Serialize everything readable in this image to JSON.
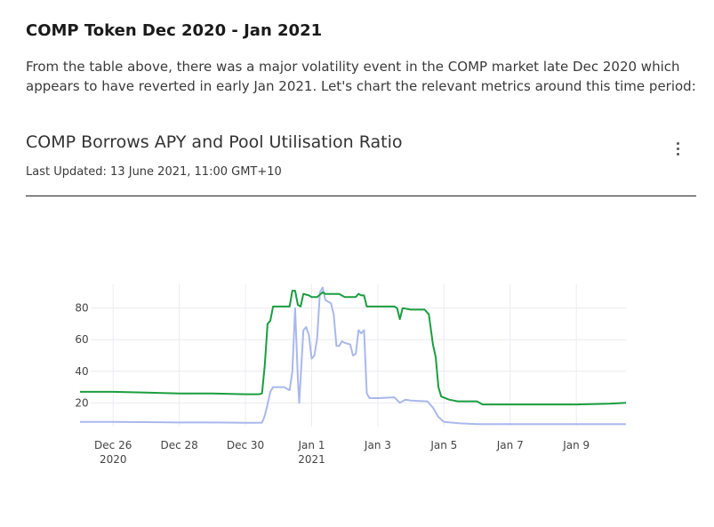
{
  "section": {
    "title": "COMP Token Dec 2020 - Jan 2021",
    "intro": "From the table above, there was a major volatility event in the COMP market late Dec 2020 which appears to have reverted in early Jan 2021. Let's chart the relevant metrics around this time period:"
  },
  "card": {
    "title": "COMP Borrows APY and Pool Utilisation Ratio",
    "updated": "Last Updated: 13 June 2021, 11:00 GMT+10",
    "menu_icon": "kebab-vertical-icon"
  },
  "chart_data": {
    "type": "line",
    "title": "COMP Borrows APY and Pool Utilisation Ratio",
    "xlabel": "",
    "ylabel": "",
    "xlim": [
      "2020-12-25",
      "2021-01-10"
    ],
    "ylim": [
      5,
      95
    ],
    "grid": true,
    "x_ticks": [
      {
        "date": "2020-12-26",
        "label": "Dec 26",
        "sublabel": "2020"
      },
      {
        "date": "2020-12-28",
        "label": "Dec 28",
        "sublabel": ""
      },
      {
        "date": "2020-12-30",
        "label": "Dec 30",
        "sublabel": ""
      },
      {
        "date": "2021-01-01",
        "label": "Jan 1",
        "sublabel": "2021"
      },
      {
        "date": "2021-01-03",
        "label": "Jan 3",
        "sublabel": ""
      },
      {
        "date": "2021-01-05",
        "label": "Jan 5",
        "sublabel": ""
      },
      {
        "date": "2021-01-07",
        "label": "Jan 7",
        "sublabel": ""
      },
      {
        "date": "2021-01-09",
        "label": "Jan 9",
        "sublabel": ""
      }
    ],
    "y_ticks": [
      20,
      40,
      60,
      80
    ],
    "series": [
      {
        "color": "#1a9e3f",
        "points": [
          [
            "2020-12-25 00:00",
            27
          ],
          [
            "2020-12-26 00:00",
            27
          ],
          [
            "2020-12-27 00:00",
            26.5
          ],
          [
            "2020-12-28 00:00",
            26
          ],
          [
            "2020-12-29 00:00",
            26
          ],
          [
            "2020-12-30 00:00",
            25.5
          ],
          [
            "2020-12-30 10:00",
            25.5
          ],
          [
            "2020-12-30 12:00",
            26
          ],
          [
            "2020-12-30 14:00",
            44
          ],
          [
            "2020-12-30 16:00",
            70
          ],
          [
            "2020-12-30 18:00",
            72
          ],
          [
            "2020-12-30 20:00",
            81
          ],
          [
            "2020-12-31 06:00",
            81
          ],
          [
            "2020-12-31 08:00",
            81
          ],
          [
            "2020-12-31 10:00",
            91
          ],
          [
            "2020-12-31 12:00",
            91
          ],
          [
            "2020-12-31 14:00",
            82
          ],
          [
            "2020-12-31 16:00",
            81
          ],
          [
            "2020-12-31 18:00",
            89
          ],
          [
            "2020-12-31 22:00",
            88
          ],
          [
            "2021-01-01 00:00",
            87
          ],
          [
            "2021-01-01 04:00",
            87
          ],
          [
            "2021-01-01 08:00",
            90
          ],
          [
            "2021-01-01 10:00",
            89
          ],
          [
            "2021-01-01 16:00",
            89
          ],
          [
            "2021-01-01 20:00",
            89
          ],
          [
            "2021-01-02 00:00",
            87
          ],
          [
            "2021-01-02 08:00",
            87
          ],
          [
            "2021-01-02 10:00",
            89
          ],
          [
            "2021-01-02 12:00",
            88
          ],
          [
            "2021-01-02 14:00",
            88
          ],
          [
            "2021-01-02 16:00",
            81
          ],
          [
            "2021-01-03 00:00",
            81
          ],
          [
            "2021-01-03 12:00",
            81
          ],
          [
            "2021-01-03 14:00",
            80
          ],
          [
            "2021-01-03 16:00",
            73
          ],
          [
            "2021-01-03 18:00",
            80
          ],
          [
            "2021-01-04 00:00",
            79
          ],
          [
            "2021-01-04 06:00",
            79
          ],
          [
            "2021-01-04 10:00",
            79
          ],
          [
            "2021-01-04 13:00",
            76
          ],
          [
            "2021-01-04 16:00",
            57
          ],
          [
            "2021-01-04 18:00",
            49
          ],
          [
            "2021-01-04 20:00",
            30
          ],
          [
            "2021-01-04 22:00",
            24
          ],
          [
            "2021-01-05 04:00",
            22
          ],
          [
            "2021-01-05 10:00",
            21
          ],
          [
            "2021-01-06 00:00",
            21
          ],
          [
            "2021-01-06 04:00",
            19
          ],
          [
            "2021-01-07 00:00",
            19
          ],
          [
            "2021-01-08 00:00",
            19
          ],
          [
            "2021-01-09 00:00",
            19
          ],
          [
            "2021-01-10 00:00",
            19.5
          ],
          [
            "2021-01-10 12:00",
            20
          ]
        ]
      },
      {
        "color": "#a9b8ec",
        "points": [
          [
            "2020-12-25 00:00",
            8
          ],
          [
            "2020-12-26 00:00",
            8
          ],
          [
            "2020-12-27 00:00",
            7.8
          ],
          [
            "2020-12-28 00:00",
            7.6
          ],
          [
            "2020-12-29 00:00",
            7.6
          ],
          [
            "2020-12-30 00:00",
            7.4
          ],
          [
            "2020-12-30 12:00",
            7.5
          ],
          [
            "2020-12-30 14:00",
            12
          ],
          [
            "2020-12-30 16:00",
            19
          ],
          [
            "2020-12-30 18:00",
            27
          ],
          [
            "2020-12-30 20:00",
            30
          ],
          [
            "2020-12-31 04:00",
            30
          ],
          [
            "2020-12-31 08:00",
            28
          ],
          [
            "2020-12-31 10:00",
            40
          ],
          [
            "2020-12-31 12:00",
            80
          ],
          [
            "2020-12-31 14:00",
            35
          ],
          [
            "2020-12-31 15:00",
            20
          ],
          [
            "2020-12-31 18:00",
            66
          ],
          [
            "2020-12-31 20:00",
            68
          ],
          [
            "2020-12-31 22:00",
            63
          ],
          [
            "2021-01-01 00:00",
            48
          ],
          [
            "2021-01-01 02:00",
            50
          ],
          [
            "2021-01-01 04:00",
            61
          ],
          [
            "2021-01-01 06:00",
            90
          ],
          [
            "2021-01-01 08:00",
            93
          ],
          [
            "2021-01-01 10:00",
            85
          ],
          [
            "2021-01-01 14:00",
            83
          ],
          [
            "2021-01-01 16:00",
            76
          ],
          [
            "2021-01-01 18:00",
            56
          ],
          [
            "2021-01-01 20:00",
            56
          ],
          [
            "2021-01-01 22:00",
            59
          ],
          [
            "2021-01-02 00:00",
            58
          ],
          [
            "2021-01-02 04:00",
            57
          ],
          [
            "2021-01-02 06:00",
            50
          ],
          [
            "2021-01-02 08:00",
            51
          ],
          [
            "2021-01-02 10:00",
            66
          ],
          [
            "2021-01-02 12:00",
            64
          ],
          [
            "2021-01-02 14:00",
            66
          ],
          [
            "2021-01-02 16:00",
            26
          ],
          [
            "2021-01-02 18:00",
            23
          ],
          [
            "2021-01-03 00:00",
            23
          ],
          [
            "2021-01-03 12:00",
            23.5
          ],
          [
            "2021-01-03 16:00",
            20
          ],
          [
            "2021-01-03 20:00",
            22
          ],
          [
            "2021-01-04 00:00",
            21.5
          ],
          [
            "2021-01-04 12:00",
            21
          ],
          [
            "2021-01-04 16:00",
            17
          ],
          [
            "2021-01-04 20:00",
            11
          ],
          [
            "2021-01-05 00:00",
            8
          ],
          [
            "2021-01-05 12:00",
            7
          ],
          [
            "2021-01-06 00:00",
            6.5
          ],
          [
            "2021-01-07 00:00",
            6.5
          ],
          [
            "2021-01-08 00:00",
            6.5
          ],
          [
            "2021-01-09 00:00",
            6.5
          ],
          [
            "2021-01-10 00:00",
            6.5
          ],
          [
            "2021-01-10 12:00",
            6.5
          ]
        ]
      }
    ]
  }
}
